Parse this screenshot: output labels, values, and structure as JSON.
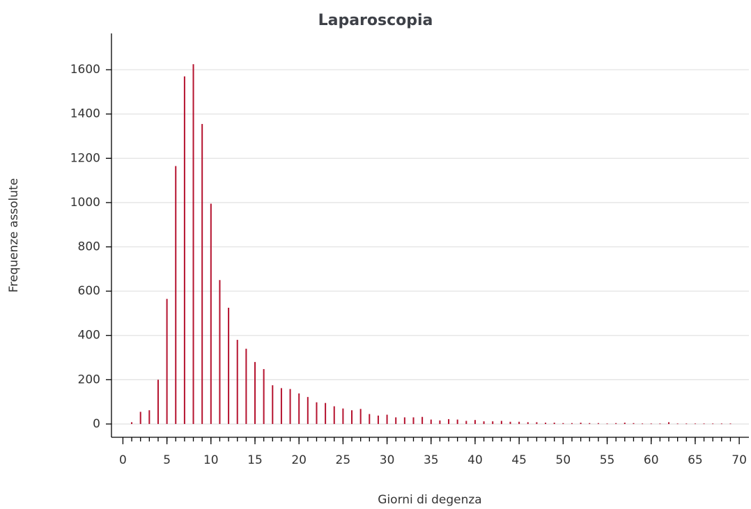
{
  "chart_data": {
    "type": "bar",
    "title": "Laparoscopia",
    "x_label": "Giorni di degenza",
    "y_label": "Frequenze assolute",
    "color": "#b5122e",
    "grid": true,
    "x": [
      1,
      2,
      3,
      4,
      5,
      6,
      7,
      8,
      9,
      10,
      11,
      12,
      13,
      14,
      15,
      16,
      17,
      18,
      19,
      20,
      21,
      22,
      23,
      24,
      25,
      26,
      27,
      28,
      29,
      30,
      31,
      32,
      33,
      34,
      35,
      36,
      37,
      38,
      39,
      40,
      41,
      42,
      43,
      44,
      45,
      46,
      47,
      48,
      49,
      50,
      51,
      52,
      53,
      54,
      55,
      56,
      57,
      58,
      59,
      60,
      61,
      62,
      63,
      64,
      65,
      66,
      67,
      68,
      69
    ],
    "values": [
      8,
      55,
      62,
      200,
      565,
      1165,
      1570,
      1625,
      1355,
      995,
      650,
      525,
      380,
      340,
      280,
      248,
      175,
      162,
      158,
      138,
      122,
      98,
      95,
      80,
      70,
      62,
      68,
      45,
      38,
      42,
      30,
      30,
      30,
      32,
      20,
      16,
      22,
      20,
      14,
      18,
      12,
      12,
      14,
      10,
      10,
      8,
      8,
      6,
      6,
      4,
      4,
      6,
      4,
      4,
      2,
      4,
      6,
      4,
      2,
      2,
      2,
      8,
      2,
      2,
      2,
      2,
      2,
      2,
      2
    ],
    "xlim": [
      -1.3,
      71.1
    ],
    "xticks": [
      0,
      5,
      10,
      15,
      20,
      25,
      30,
      35,
      40,
      45,
      50,
      55,
      60,
      65,
      70
    ],
    "ylim": [
      -60,
      1764
    ],
    "yticks": [
      0,
      200,
      400,
      600,
      800,
      1000,
      1200,
      1400,
      1600
    ]
  }
}
